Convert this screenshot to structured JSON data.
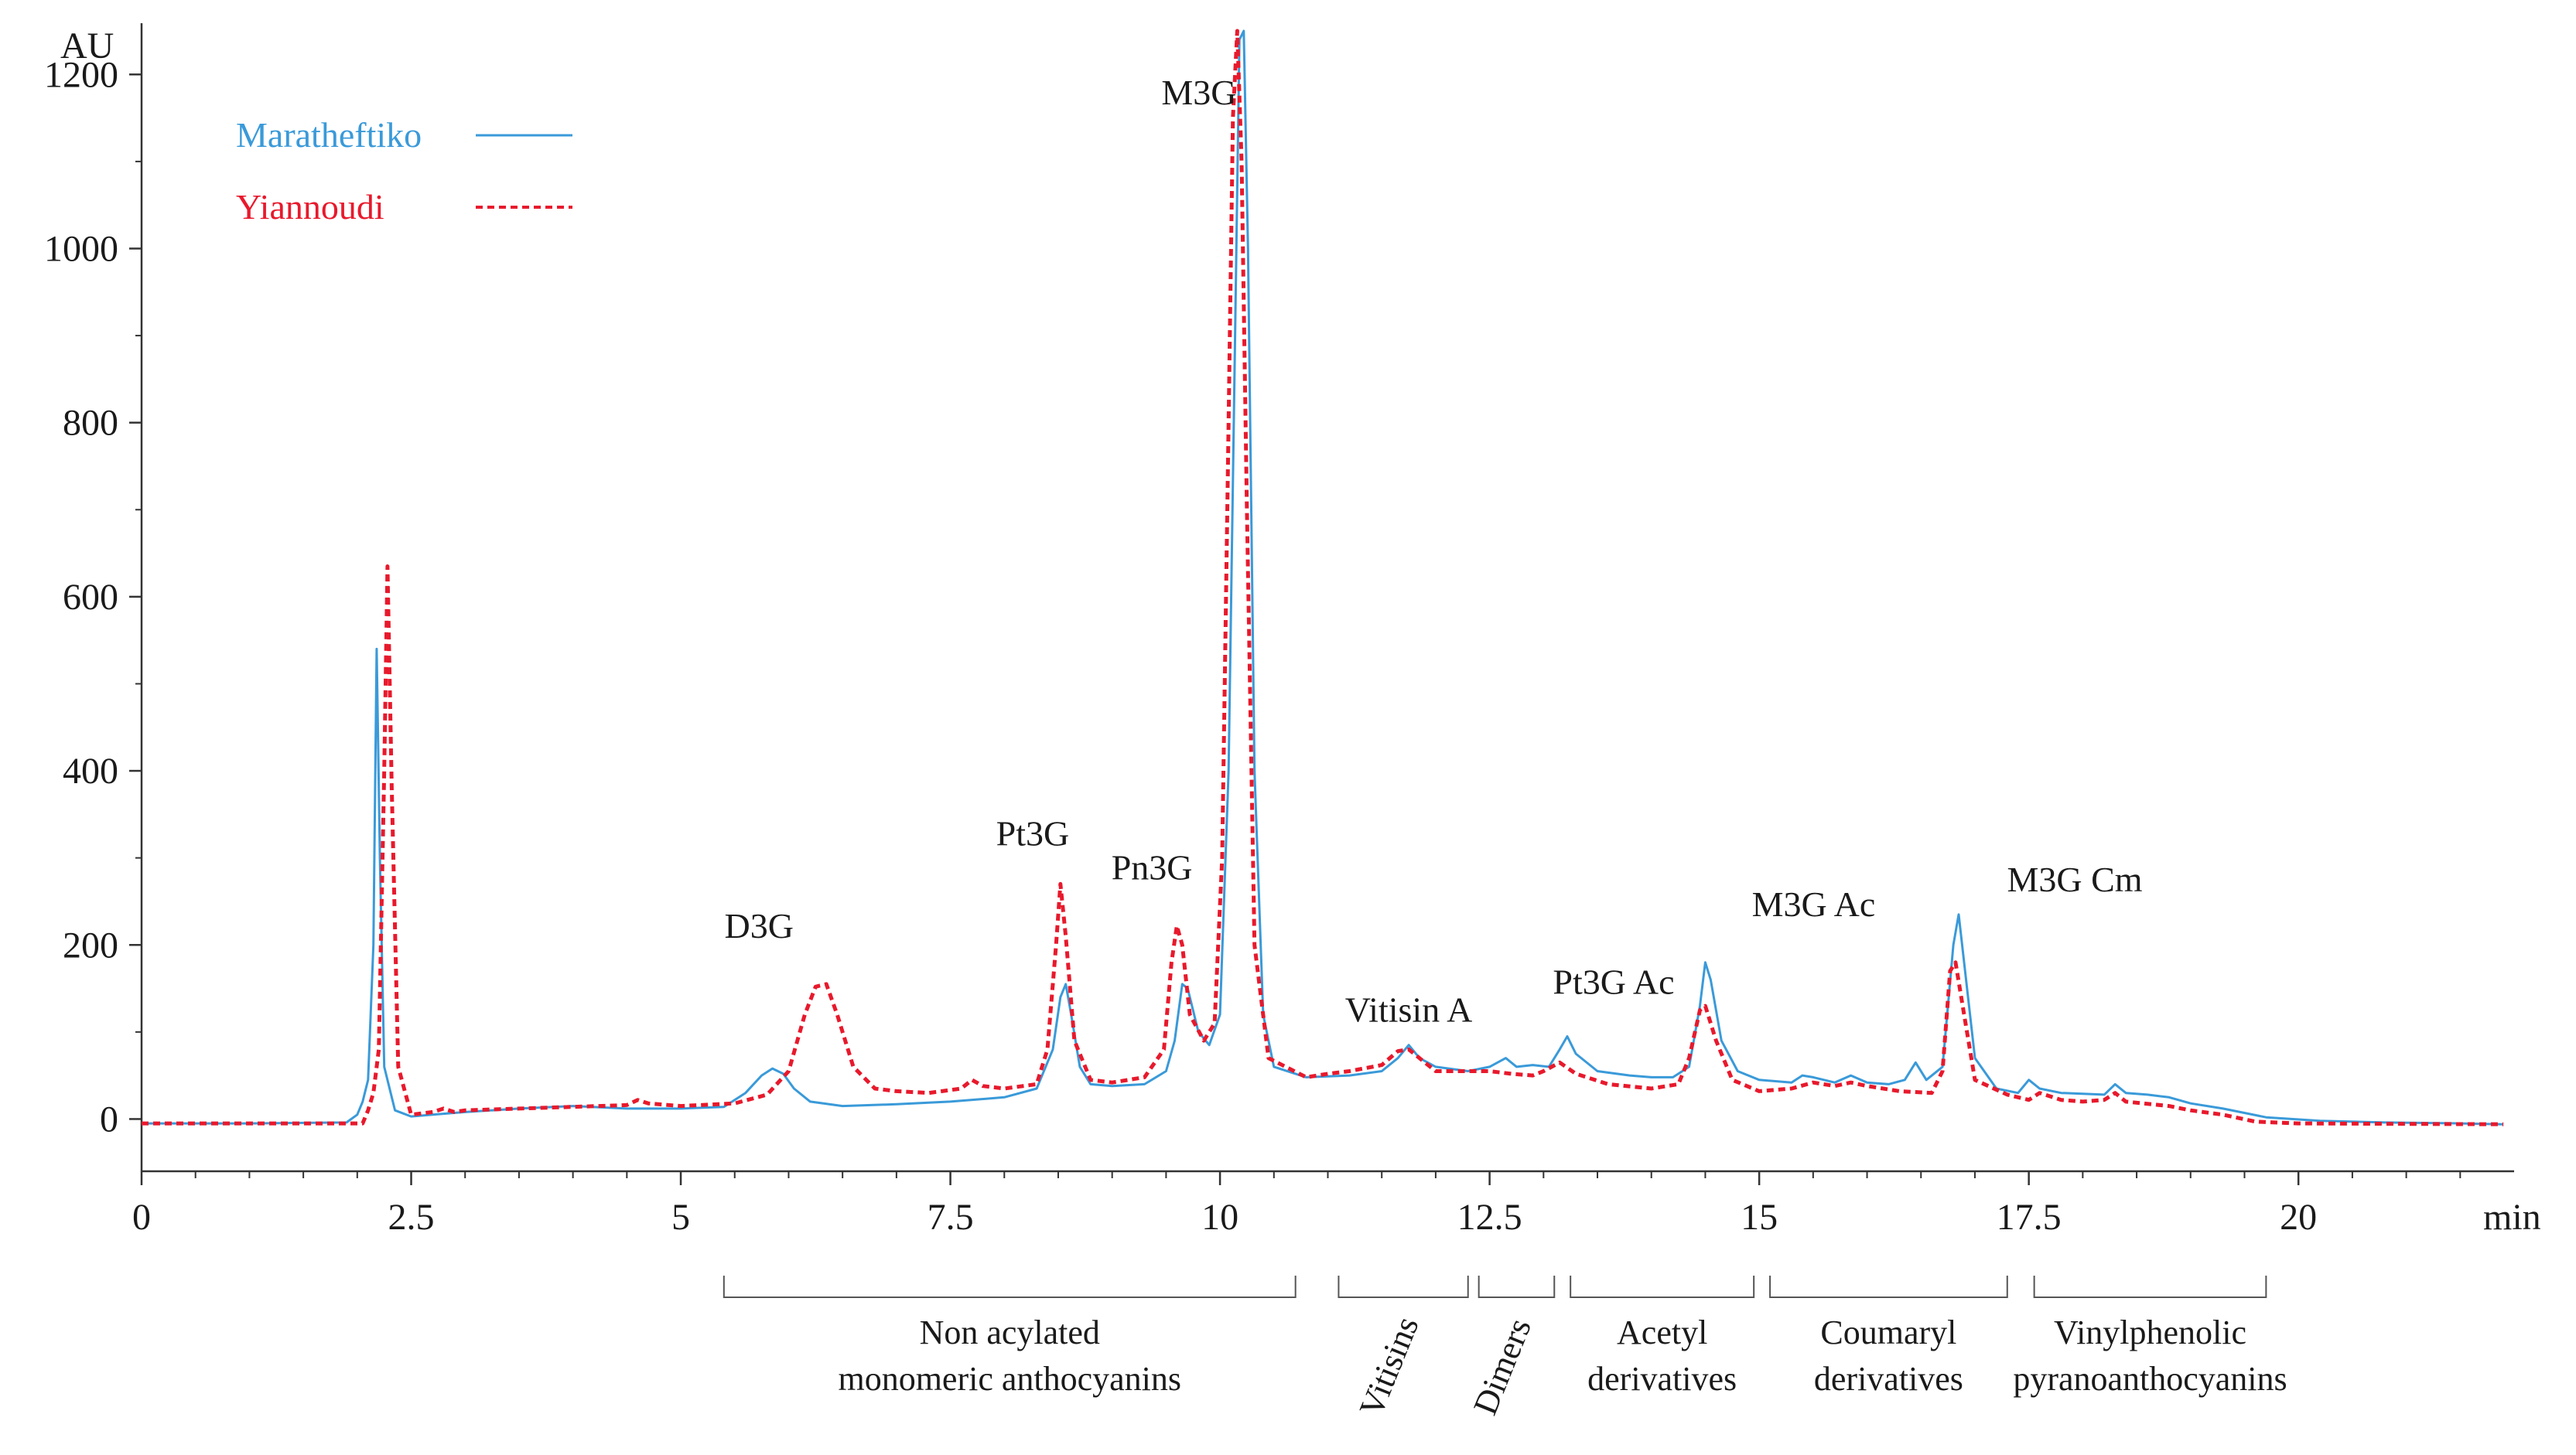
{
  "chart_data": {
    "type": "line",
    "title": "",
    "xlabel": "min",
    "ylabel": "AU",
    "xlim": [
      0,
      22
    ],
    "ylim": [
      -60,
      1250
    ],
    "x_ticks": [
      {
        "value": 0,
        "label": "0"
      },
      {
        "value": 2.5,
        "label": "2.5"
      },
      {
        "value": 5,
        "label": "5"
      },
      {
        "value": 7.5,
        "label": "7.5"
      },
      {
        "value": 10,
        "label": "10"
      },
      {
        "value": 12.5,
        "label": "12.5"
      },
      {
        "value": 15,
        "label": "15"
      },
      {
        "value": 17.5,
        "label": "17.5"
      },
      {
        "value": 20,
        "label": "20"
      }
    ],
    "y_ticks": [
      {
        "value": 0,
        "label": "0"
      },
      {
        "value": 200,
        "label": "200"
      },
      {
        "value": 400,
        "label": "400"
      },
      {
        "value": 600,
        "label": "600"
      },
      {
        "value": 800,
        "label": "800"
      },
      {
        "value": 1000,
        "label": "1000"
      },
      {
        "value": 1200,
        "label": "1200"
      }
    ],
    "grid": false,
    "legend_position": "top-left",
    "series": [
      {
        "name": "Maratheftiko",
        "color": "#3a9ad9",
        "style": "solid",
        "points": [
          [
            0,
            -5
          ],
          [
            1.0,
            -5
          ],
          [
            1.9,
            -4
          ],
          [
            2.0,
            5
          ],
          [
            2.05,
            20
          ],
          [
            2.1,
            45
          ],
          [
            2.15,
            200
          ],
          [
            2.18,
            540
          ],
          [
            2.21,
            300
          ],
          [
            2.25,
            60
          ],
          [
            2.35,
            10
          ],
          [
            2.5,
            3
          ],
          [
            2.7,
            5
          ],
          [
            3.0,
            8
          ],
          [
            3.5,
            12
          ],
          [
            4.0,
            15
          ],
          [
            4.5,
            12
          ],
          [
            5.0,
            12
          ],
          [
            5.4,
            14
          ],
          [
            5.6,
            30
          ],
          [
            5.75,
            50
          ],
          [
            5.85,
            58
          ],
          [
            5.95,
            52
          ],
          [
            6.05,
            35
          ],
          [
            6.2,
            20
          ],
          [
            6.5,
            15
          ],
          [
            7.0,
            17
          ],
          [
            7.5,
            20
          ],
          [
            8.0,
            25
          ],
          [
            8.3,
            35
          ],
          [
            8.45,
            80
          ],
          [
            8.52,
            140
          ],
          [
            8.57,
            155
          ],
          [
            8.62,
            120
          ],
          [
            8.7,
            60
          ],
          [
            8.8,
            40
          ],
          [
            9.0,
            38
          ],
          [
            9.3,
            40
          ],
          [
            9.5,
            55
          ],
          [
            9.58,
            90
          ],
          [
            9.65,
            155
          ],
          [
            9.7,
            150
          ],
          [
            9.8,
            100
          ],
          [
            9.9,
            85
          ],
          [
            10.0,
            120
          ],
          [
            10.08,
            400
          ],
          [
            10.14,
            900
          ],
          [
            10.18,
            1240
          ],
          [
            10.22,
            1250
          ],
          [
            10.26,
            1000
          ],
          [
            10.32,
            400
          ],
          [
            10.4,
            120
          ],
          [
            10.5,
            60
          ],
          [
            10.8,
            48
          ],
          [
            11.2,
            50
          ],
          [
            11.5,
            55
          ],
          [
            11.65,
            70
          ],
          [
            11.75,
            85
          ],
          [
            11.85,
            70
          ],
          [
            12.0,
            60
          ],
          [
            12.3,
            55
          ],
          [
            12.5,
            60
          ],
          [
            12.65,
            70
          ],
          [
            12.75,
            60
          ],
          [
            12.9,
            62
          ],
          [
            13.05,
            60
          ],
          [
            13.15,
            80
          ],
          [
            13.22,
            95
          ],
          [
            13.3,
            75
          ],
          [
            13.5,
            55
          ],
          [
            13.8,
            50
          ],
          [
            14.0,
            48
          ],
          [
            14.2,
            48
          ],
          [
            14.35,
            60
          ],
          [
            14.45,
            130
          ],
          [
            14.5,
            180
          ],
          [
            14.55,
            160
          ],
          [
            14.65,
            90
          ],
          [
            14.8,
            55
          ],
          [
            15.0,
            45
          ],
          [
            15.3,
            42
          ],
          [
            15.4,
            50
          ],
          [
            15.5,
            48
          ],
          [
            15.7,
            42
          ],
          [
            15.85,
            50
          ],
          [
            16.0,
            42
          ],
          [
            16.2,
            40
          ],
          [
            16.35,
            45
          ],
          [
            16.45,
            65
          ],
          [
            16.55,
            45
          ],
          [
            16.7,
            60
          ],
          [
            16.8,
            200
          ],
          [
            16.85,
            235
          ],
          [
            16.9,
            180
          ],
          [
            17.0,
            70
          ],
          [
            17.2,
            35
          ],
          [
            17.4,
            30
          ],
          [
            17.5,
            45
          ],
          [
            17.6,
            35
          ],
          [
            17.8,
            30
          ],
          [
            18.2,
            28
          ],
          [
            18.3,
            40
          ],
          [
            18.4,
            30
          ],
          [
            18.6,
            28
          ],
          [
            18.8,
            25
          ],
          [
            19.0,
            18
          ],
          [
            19.3,
            12
          ],
          [
            19.7,
            2
          ],
          [
            20.2,
            -2
          ],
          [
            20.8,
            -4
          ],
          [
            21.5,
            -5
          ],
          [
            21.9,
            -6
          ]
        ]
      },
      {
        "name": "Yiannoudi",
        "color": "#e8192c",
        "style": "dashed",
        "points": [
          [
            0,
            -5
          ],
          [
            1.0,
            -5
          ],
          [
            2.05,
            -5
          ],
          [
            2.1,
            10
          ],
          [
            2.15,
            30
          ],
          [
            2.2,
            80
          ],
          [
            2.25,
            400
          ],
          [
            2.28,
            635
          ],
          [
            2.32,
            380
          ],
          [
            2.38,
            60
          ],
          [
            2.5,
            5
          ],
          [
            2.7,
            8
          ],
          [
            2.8,
            12
          ],
          [
            2.9,
            8
          ],
          [
            3.0,
            10
          ],
          [
            3.5,
            12
          ],
          [
            4.0,
            14
          ],
          [
            4.5,
            16
          ],
          [
            4.6,
            22
          ],
          [
            4.7,
            18
          ],
          [
            5.0,
            15
          ],
          [
            5.5,
            18
          ],
          [
            5.8,
            28
          ],
          [
            6.0,
            55
          ],
          [
            6.15,
            120
          ],
          [
            6.25,
            152
          ],
          [
            6.35,
            155
          ],
          [
            6.45,
            120
          ],
          [
            6.6,
            60
          ],
          [
            6.8,
            35
          ],
          [
            7.0,
            32
          ],
          [
            7.3,
            30
          ],
          [
            7.6,
            35
          ],
          [
            7.7,
            45
          ],
          [
            7.8,
            38
          ],
          [
            8.0,
            35
          ],
          [
            8.3,
            40
          ],
          [
            8.4,
            80
          ],
          [
            8.48,
            200
          ],
          [
            8.52,
            270
          ],
          [
            8.57,
            210
          ],
          [
            8.65,
            90
          ],
          [
            8.8,
            45
          ],
          [
            9.0,
            42
          ],
          [
            9.3,
            48
          ],
          [
            9.48,
            80
          ],
          [
            9.55,
            180
          ],
          [
            9.6,
            222
          ],
          [
            9.65,
            200
          ],
          [
            9.72,
            120
          ],
          [
            9.85,
            90
          ],
          [
            9.95,
            110
          ],
          [
            10.02,
            300
          ],
          [
            10.08,
            800
          ],
          [
            10.12,
            1150
          ],
          [
            10.16,
            1250
          ],
          [
            10.2,
            1100
          ],
          [
            10.25,
            700
          ],
          [
            10.32,
            200
          ],
          [
            10.45,
            70
          ],
          [
            10.8,
            48
          ],
          [
            11.0,
            52
          ],
          [
            11.2,
            55
          ],
          [
            11.5,
            62
          ],
          [
            11.65,
            78
          ],
          [
            11.75,
            80
          ],
          [
            11.9,
            65
          ],
          [
            12.0,
            55
          ],
          [
            12.5,
            55
          ],
          [
            12.7,
            52
          ],
          [
            12.9,
            50
          ],
          [
            13.0,
            55
          ],
          [
            13.15,
            65
          ],
          [
            13.3,
            52
          ],
          [
            13.6,
            40
          ],
          [
            14.0,
            35
          ],
          [
            14.25,
            40
          ],
          [
            14.35,
            70
          ],
          [
            14.45,
            125
          ],
          [
            14.5,
            130
          ],
          [
            14.6,
            90
          ],
          [
            14.75,
            45
          ],
          [
            15.0,
            32
          ],
          [
            15.3,
            35
          ],
          [
            15.5,
            42
          ],
          [
            15.7,
            38
          ],
          [
            15.85,
            42
          ],
          [
            16.0,
            38
          ],
          [
            16.3,
            32
          ],
          [
            16.6,
            30
          ],
          [
            16.7,
            55
          ],
          [
            16.77,
            170
          ],
          [
            16.82,
            180
          ],
          [
            16.9,
            120
          ],
          [
            17.0,
            45
          ],
          [
            17.3,
            28
          ],
          [
            17.5,
            22
          ],
          [
            17.6,
            30
          ],
          [
            17.8,
            22
          ],
          [
            18.0,
            20
          ],
          [
            18.2,
            22
          ],
          [
            18.3,
            30
          ],
          [
            18.4,
            20
          ],
          [
            18.8,
            15
          ],
          [
            19.0,
            10
          ],
          [
            19.3,
            5
          ],
          [
            19.6,
            -3
          ],
          [
            20.0,
            -5
          ],
          [
            21.9,
            -6
          ]
        ]
      }
    ],
    "peak_annotations": [
      {
        "label": "M3G",
        "x": 10.2,
        "y": 1250
      },
      {
        "label": "Pt3G",
        "x": 8.55,
        "y": 270
      },
      {
        "label": "Pn3G",
        "x": 9.62,
        "y": 222
      },
      {
        "label": "D3G",
        "x": 6.3,
        "y": 155
      },
      {
        "label": "Vitisin A",
        "x": 11.75,
        "y": 85
      },
      {
        "label": "Pt3G Ac",
        "x": 13.22,
        "y": 95
      },
      {
        "label": "M3G Ac",
        "x": 14.5,
        "y": 180
      },
      {
        "label": "M3G Cm",
        "x": 16.85,
        "y": 235
      }
    ],
    "group_annotations": [
      {
        "label_lines": [
          "Non acylated",
          "monomeric anthocyanins"
        ],
        "x_start": 5.4,
        "x_end": 10.7,
        "rotated": false
      },
      {
        "label_lines": [
          "Vitisins"
        ],
        "x_start": 11.1,
        "x_end": 12.3,
        "rotated": true
      },
      {
        "label_lines": [
          "Dimers"
        ],
        "x_start": 12.4,
        "x_end": 13.1,
        "rotated": true
      },
      {
        "label_lines": [
          "Acetyl",
          "derivatives"
        ],
        "x_start": 13.25,
        "x_end": 14.95,
        "rotated": false
      },
      {
        "label_lines": [
          "Coumaryl",
          "derivatives"
        ],
        "x_start": 15.1,
        "x_end": 17.3,
        "rotated": false
      },
      {
        "label_lines": [
          "Vinylphenolic",
          "pyranoanthocyanins"
        ],
        "x_start": 17.55,
        "x_end": 19.7,
        "rotated": false
      }
    ]
  }
}
